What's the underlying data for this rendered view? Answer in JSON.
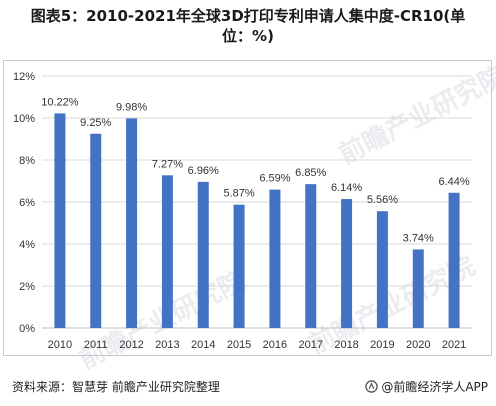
{
  "title": "图表5：2010-2021年全球3D打印专利申请人集中度-CR10(单位：%)",
  "footer": {
    "source": "资料来源：智慧芽 前瞻产业研究院整理",
    "brand": "@前瞻经济学人APP"
  },
  "watermark": "前瞻产业研究院",
  "colors": {
    "bar": "#4472C4",
    "grid": "#d9d9d9",
    "axis": "#bfbfbf"
  },
  "chart_data": {
    "type": "bar",
    "title": "图表5：2010-2021年全球3D打印专利申请人集中度-CR10(单位：%)",
    "xlabel": "",
    "ylabel": "",
    "ylim": [
      0,
      12
    ],
    "yticks": [
      "0%",
      "2%",
      "4%",
      "6%",
      "8%",
      "10%",
      "12%"
    ],
    "grid": true,
    "legend": "none",
    "categories": [
      "2010",
      "2011",
      "2012",
      "2013",
      "2014",
      "2015",
      "2016",
      "2017",
      "2018",
      "2019",
      "2020",
      "2021"
    ],
    "values": [
      10.22,
      9.25,
      9.98,
      7.27,
      6.96,
      5.87,
      6.59,
      6.85,
      6.14,
      5.56,
      3.74,
      6.44
    ],
    "value_labels": [
      "10.22%",
      "9.25%",
      "9.98%",
      "7.27%",
      "6.96%",
      "5.87%",
      "6.59%",
      "6.85%",
      "6.14%",
      "5.56%",
      "3.74%",
      "6.44%"
    ]
  }
}
